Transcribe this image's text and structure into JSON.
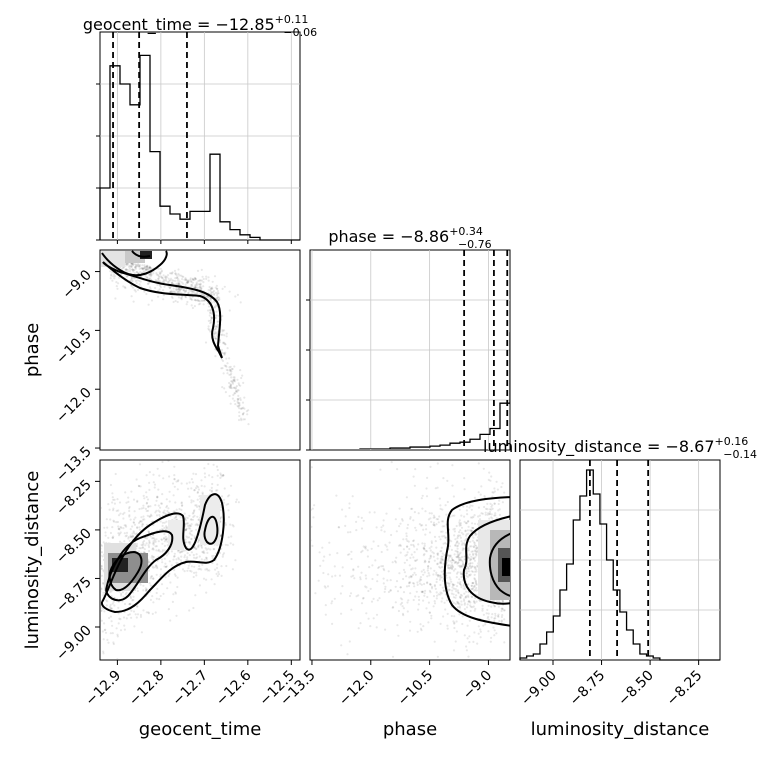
{
  "chart_data": {
    "type": "corner",
    "parameters": [
      "geocent_time",
      "phase",
      "luminosity_distance"
    ],
    "titles": [
      {
        "param": "geocent_time",
        "prefix": "geocent_time = ",
        "median": "−12.85",
        "plus": "+0.11",
        "minus": "−0.06"
      },
      {
        "param": "phase",
        "prefix": "phase = ",
        "median": "−8.86",
        "plus": "+0.34",
        "minus": "−0.76"
      },
      {
        "param": "luminosity_distance",
        "prefix": "luminosity_distance = ",
        "median": "−8.67",
        "plus": "+0.16",
        "minus": "−0.14"
      }
    ],
    "axes": {
      "geocent_time": {
        "range": [
          -12.94,
          -12.48
        ],
        "ticks": [
          -12.9,
          -12.8,
          -12.7,
          -12.6,
          -12.5
        ],
        "tick_labels": [
          "−12.9",
          "−12.8",
          "−12.7",
          "−12.6",
          "−12.5"
        ]
      },
      "phase": {
        "range": [
          -13.55,
          -8.45
        ],
        "ticks": [
          -13.5,
          -12.0,
          -10.5,
          -9.0
        ],
        "tick_labels": [
          "−13.5",
          "−12.0",
          "−10.5",
          "−9.0"
        ]
      },
      "luminosity_distance": {
        "range": [
          -9.17,
          -8.14
        ],
        "ticks": [
          -9.0,
          -8.75,
          -8.5,
          -8.25
        ],
        "tick_labels": [
          "−9.00",
          "−8.75",
          "−8.50",
          "−8.25"
        ]
      }
    },
    "histograms": {
      "geocent_time": {
        "edges_from": -12.94,
        "bin_width": 0.023,
        "counts": [
          20,
          67,
          60,
          52,
          71,
          34,
          13,
          10,
          8,
          11,
          11,
          33,
          7,
          4,
          2,
          1,
          0,
          0,
          0,
          0
        ],
        "quantiles": [
          -12.91,
          -12.85,
          -12.74
        ]
      },
      "phase": {
        "edges_from": -13.55,
        "bin_width": 0.255,
        "counts": [
          0,
          0,
          0,
          0,
          0,
          1,
          1,
          1,
          2,
          2,
          3,
          3,
          4,
          5,
          7,
          8,
          11,
          16,
          22,
          48,
          120,
          200
        ],
        "quantiles": [
          -9.62,
          -8.86,
          -8.52
        ]
      },
      "luminosity_distance": {
        "edges_from": -9.17,
        "bin_width": 0.0343,
        "counts": [
          1,
          2,
          3,
          8,
          14,
          22,
          35,
          48,
          70,
          82,
          95,
          83,
          68,
          50,
          35,
          24,
          15,
          8,
          3,
          2,
          1,
          0,
          0,
          0,
          0,
          0,
          0,
          0,
          0,
          0
        ],
        "quantiles": [
          -8.81,
          -8.67,
          -8.51
        ]
      }
    },
    "grid": true
  }
}
